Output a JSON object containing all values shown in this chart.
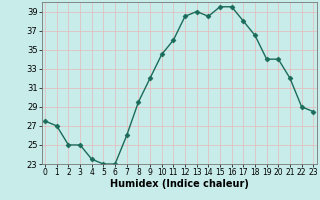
{
  "x": [
    0,
    1,
    2,
    3,
    4,
    5,
    6,
    7,
    8,
    9,
    10,
    11,
    12,
    13,
    14,
    15,
    16,
    17,
    18,
    19,
    20,
    21,
    22,
    23
  ],
  "y": [
    27.5,
    27.0,
    25.0,
    25.0,
    23.5,
    23.0,
    23.0,
    26.0,
    29.5,
    32.0,
    34.5,
    36.0,
    38.5,
    39.0,
    38.5,
    39.5,
    39.5,
    38.0,
    36.5,
    34.0,
    34.0,
    32.0,
    29.0,
    28.5
  ],
  "line_color": "#1a6b5a",
  "marker": "D",
  "marker_size": 2.5,
  "bg_color": "#c8ecea",
  "grid_color": "#e8b8b8",
  "tick_color": "#000000",
  "xlabel": "Humidex (Indice chaleur)",
  "ylim": [
    23,
    40
  ],
  "xlim": [
    -0.3,
    23.3
  ],
  "yticks": [
    23,
    25,
    27,
    29,
    31,
    33,
    35,
    37,
    39
  ],
  "xticks": [
    0,
    1,
    2,
    3,
    4,
    5,
    6,
    7,
    8,
    9,
    10,
    11,
    12,
    13,
    14,
    15,
    16,
    17,
    18,
    19,
    20,
    21,
    22,
    23
  ],
  "xlabel_fontsize": 7,
  "tick_fontsize": 6,
  "linewidth": 1.0
}
